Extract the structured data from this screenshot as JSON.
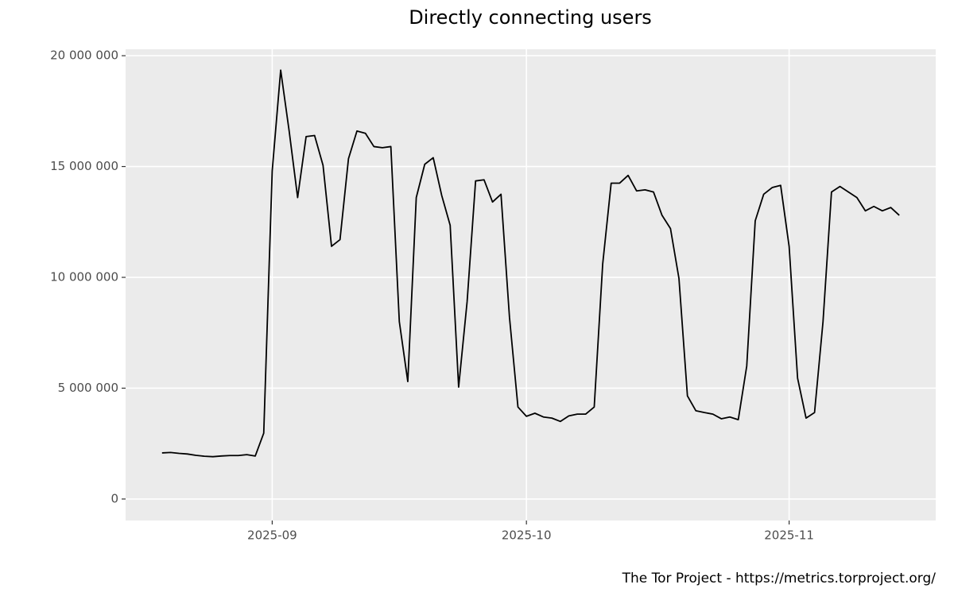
{
  "chart_data": {
    "type": "line",
    "title": "Directly connecting users",
    "caption": "The Tor Project - https://metrics.torproject.org/",
    "categories": [
      null,
      null,
      null,
      null,
      null,
      null,
      null,
      null,
      null,
      null,
      null,
      null,
      null,
      "2025-09",
      null,
      null,
      null,
      null,
      null,
      null,
      null,
      null,
      null,
      null,
      null,
      null,
      null,
      null,
      null,
      null,
      null,
      null,
      null,
      null,
      null,
      null,
      null,
      null,
      null,
      null,
      null,
      null,
      null,
      "2025-10",
      null,
      null,
      null,
      null,
      null,
      null,
      null,
      null,
      null,
      null,
      null,
      null,
      null,
      null,
      null,
      null,
      null,
      null,
      null,
      null,
      null,
      null,
      null,
      null,
      null,
      null,
      null,
      null,
      null,
      null,
      "2025-11",
      null,
      null,
      null,
      null,
      null,
      null,
      null,
      null,
      null,
      null,
      null,
      null,
      null
    ],
    "values": [
      2080000,
      2100000,
      2060000,
      2030000,
      1970000,
      1930000,
      1910000,
      1940000,
      1960000,
      1960000,
      2000000,
      1940000,
      2970000,
      14800000,
      19350000,
      16600000,
      13600000,
      16350000,
      16400000,
      15050000,
      11400000,
      11700000,
      15350000,
      16600000,
      16500000,
      15900000,
      15850000,
      15900000,
      8000000,
      5300000,
      13600000,
      15100000,
      15400000,
      13700000,
      12350000,
      5050000,
      8900000,
      14350000,
      14400000,
      13400000,
      13750000,
      8200000,
      4150000,
      3730000,
      3870000,
      3700000,
      3650000,
      3500000,
      3750000,
      3830000,
      3830000,
      4150000,
      10600000,
      14250000,
      14250000,
      14600000,
      13900000,
      13950000,
      13850000,
      12800000,
      12200000,
      9950000,
      4650000,
      3980000,
      3900000,
      3830000,
      3620000,
      3700000,
      3580000,
      6000000,
      12550000,
      13750000,
      14050000,
      14150000,
      11400000,
      5450000,
      3650000,
      3900000,
      8000000,
      13850000,
      14100000,
      13850000,
      13600000,
      13000000,
      13200000,
      13000000,
      13150000,
      12800000
    ],
    "color": "#000000",
    "ylim": [
      -970000,
      20290000
    ],
    "yticks": [
      0,
      {
        "value": 5000000,
        "label": "5 000 000"
      },
      {
        "value": 10000000,
        "label": "10 000 000"
      },
      {
        "value": 15000000,
        "label": "15 000 000"
      },
      {
        "value": 20000000,
        "label": "20 000 000"
      }
    ],
    "grid": true
  }
}
